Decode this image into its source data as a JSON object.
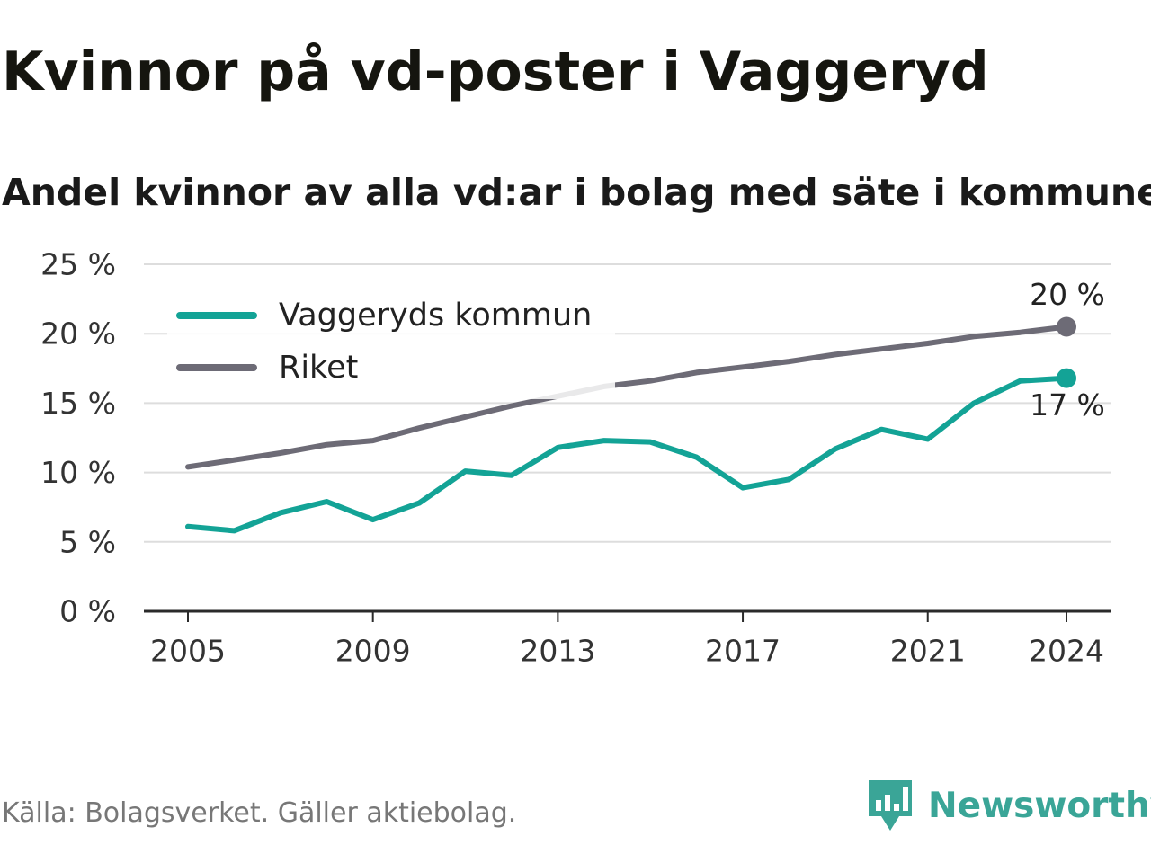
{
  "header": {
    "title": "Kvinnor på vd-poster i Vaggeryd",
    "subtitle": "Andel kvinnor av alla vd:ar i bolag med säte i kommunen"
  },
  "footer": {
    "source": "Källa: Bolagsverket. Gäller aktiebolag.",
    "brand": "Newsworthy",
    "brand_icon": "newsworthy-logo-icon"
  },
  "chart_data": {
    "type": "line",
    "title": "Kvinnor på vd-poster i Vaggeryd",
    "subtitle": "Andel kvinnor av alla vd:ar i bolag med säte i kommunen",
    "xlabel": "",
    "ylabel": "",
    "x": [
      2005,
      2006,
      2007,
      2008,
      2009,
      2010,
      2011,
      2012,
      2013,
      2014,
      2015,
      2016,
      2017,
      2018,
      2019,
      2020,
      2021,
      2022,
      2023,
      2024
    ],
    "xticks": [
      "2005",
      "2009",
      "2013",
      "2017",
      "2021",
      "2024"
    ],
    "xtick_values": [
      2005,
      2009,
      2013,
      2017,
      2021,
      2024
    ],
    "xlim": [
      2004,
      2025
    ],
    "ylim": [
      0,
      25
    ],
    "yticks": [
      0,
      5,
      10,
      15,
      20,
      25
    ],
    "ytick_labels": [
      "0 %",
      "5 %",
      "10 %",
      "15 %",
      "20 %",
      "25 %"
    ],
    "grid": true,
    "legend_position": "top-left",
    "series": [
      {
        "name": "Vaggeryds kommun",
        "color": "#13a396",
        "values": [
          6.1,
          5.8,
          7.1,
          7.9,
          6.6,
          7.8,
          10.1,
          9.8,
          11.8,
          12.3,
          12.2,
          11.1,
          8.9,
          9.5,
          11.7,
          13.1,
          12.4,
          15.0,
          16.6,
          16.8
        ],
        "end_label": "17 %"
      },
      {
        "name": "Riket",
        "color": "#6d6b76",
        "values": [
          10.4,
          10.9,
          11.4,
          12.0,
          12.3,
          13.2,
          14.0,
          14.8,
          15.5,
          16.2,
          16.6,
          17.2,
          17.6,
          18.0,
          18.5,
          18.9,
          19.3,
          19.8,
          20.1,
          20.5
        ],
        "end_label": "20 %"
      }
    ]
  }
}
